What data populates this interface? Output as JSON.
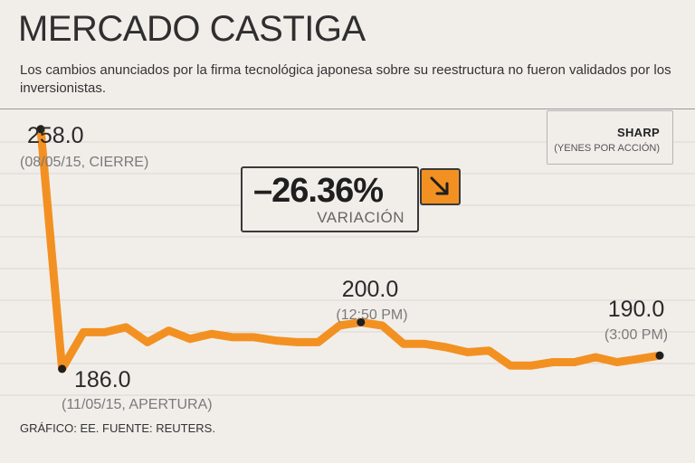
{
  "header": {
    "title": "MERCADO CASTIGA",
    "subtitle": "Los cambios anunciados por la firma tecnológica japonesa sobre su reestructura no fueron validados por los inversionistas."
  },
  "legend": {
    "title": "SHARP",
    "subtitle": "(YENES POR ACCIÓN)"
  },
  "variation": {
    "value": "–26.36%",
    "label": "VARIACIÓN",
    "icon": "arrow-down-right-icon",
    "color": "#f29122"
  },
  "annotations": [
    {
      "value": "258.0",
      "note": "(08/05/15, CIERRE)"
    },
    {
      "value": "186.0",
      "note": "(11/05/15, APERTURA)"
    },
    {
      "value": "200.0",
      "note": "(12:50 PM)"
    },
    {
      "value": "190.0",
      "note": "(3:00 PM)"
    }
  ],
  "footer": "GRÁFICO: EE. FUENTE: REUTERS.",
  "chart_data": {
    "type": "line",
    "title": "MERCADO CASTIGA",
    "xlabel": "",
    "ylabel": "(YENES POR ACCIÓN)",
    "ylim": [
      180,
      265
    ],
    "grid": true,
    "line_color": "#f29122",
    "series": [
      {
        "name": "SHARP",
        "values": [
          258.0,
          186.0,
          197.0,
          197.0,
          198.5,
          194.0,
          197.5,
          195.0,
          196.5,
          195.5,
          195.5,
          194.5,
          194.0,
          194.0,
          199.0,
          200.0,
          199.0,
          193.5,
          193.5,
          192.5,
          191.0,
          191.5,
          187.0,
          187.0,
          188.0,
          188.0,
          189.5,
          188.0,
          189.0,
          190.0
        ]
      }
    ],
    "highlighted_points": [
      {
        "index": 0,
        "value": 258.0
      },
      {
        "index": 1,
        "value": 186.0
      },
      {
        "index": 15,
        "value": 200.0
      },
      {
        "index": 29,
        "value": 190.0
      }
    ]
  }
}
